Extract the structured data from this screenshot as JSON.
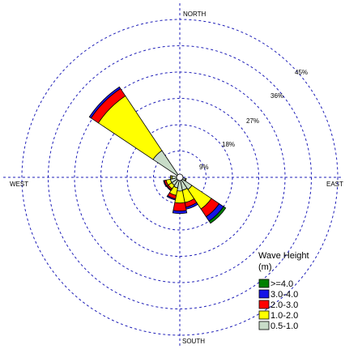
{
  "chart_data": {
    "type": "wind-rose",
    "directions": [
      "NORTH",
      "EAST",
      "SOUTH",
      "WEST"
    ],
    "ring_labels": [
      "9%",
      "18%",
      "27%",
      "36%",
      "45%"
    ],
    "rmax": 45,
    "legend": {
      "title_line1": "Wave Height",
      "title_line2": "(m)",
      "placement": "bottom-right",
      "bins": [
        {
          "label": ">=4.0",
          "color": "#008000"
        },
        {
          "label": "3.0-4.0",
          "color": "#1515e6"
        },
        {
          "label": "2.0-3.0",
          "color": "#ff0000"
        },
        {
          "label": "1.0-2.0",
          "color": "#ffff00"
        },
        {
          "label": "0.5-1.0",
          "color": "#c8dcc8"
        }
      ]
    },
    "sectors": [
      {
        "direction": 315,
        "cumulative": [
          0.5,
          11,
          33.5,
          36.5,
          37.2,
          37.2
        ]
      },
      {
        "direction": 135,
        "cumulative": [
          0.5,
          5,
          13,
          16.2,
          18,
          18.9
        ]
      },
      {
        "direction": 157.5,
        "cumulative": [
          0.5,
          4.5,
          8.8,
          10.4,
          11.1,
          11.1
        ]
      },
      {
        "direction": 180,
        "cumulative": [
          0.5,
          4.7,
          8.8,
          11.5,
          12.4,
          12.4
        ]
      },
      {
        "direction": 202.5,
        "cumulative": [
          0.5,
          3.7,
          6.3,
          7.5,
          7.9,
          7.9
        ]
      },
      {
        "direction": 225,
        "cumulative": [
          0.5,
          3.3,
          4.7,
          5.2,
          5.5,
          5.5
        ]
      },
      {
        "direction": 247.5,
        "cumulative": [
          0.5,
          3.3,
          4.8,
          5.4,
          5.7,
          5.7
        ]
      },
      {
        "direction": 270,
        "cumulative": [
          0.5,
          2.6,
          3.1,
          3.2,
          3.2,
          3.2
        ]
      },
      {
        "direction": 112.5,
        "cumulative": [
          0.5,
          2.0,
          2.3,
          2.3,
          2.3,
          2.3
        ]
      }
    ]
  }
}
